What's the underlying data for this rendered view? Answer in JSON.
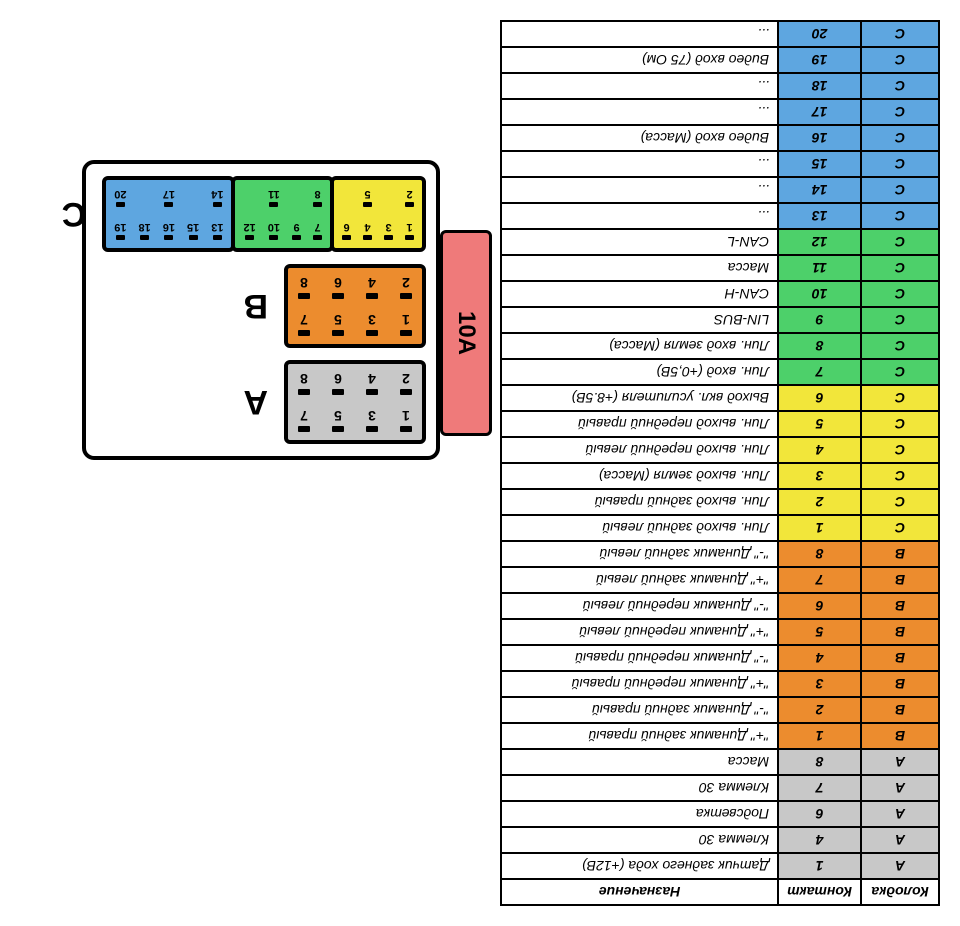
{
  "colors": {
    "gray": "#c8c8c8",
    "orange": "#ec8c2e",
    "yellow": "#f2e63a",
    "green": "#4dd06a",
    "blue": "#5ea6e0",
    "fuse": "#ef7a7a",
    "border": "#000000",
    "bg": "#ffffff"
  },
  "fuse_label": "10A",
  "connectors": {
    "A": {
      "color": "gray",
      "pins": [
        [
          1,
          2
        ],
        [
          3,
          4
        ],
        [
          5,
          6
        ],
        [
          7,
          8
        ]
      ]
    },
    "B": {
      "color": "orange",
      "pins": [
        [
          1,
          2
        ],
        [
          3,
          4
        ],
        [
          5,
          6
        ],
        [
          7,
          8
        ]
      ]
    },
    "C": {
      "segments": [
        {
          "color": "yellow",
          "pins": [
            [
              1,
              2
            ],
            [
              3,
              null
            ],
            [
              4,
              5
            ],
            [
              6,
              null
            ]
          ]
        },
        {
          "color": "green",
          "pins": [
            [
              7,
              8
            ],
            [
              9,
              null
            ],
            [
              10,
              11
            ],
            [
              12,
              null
            ]
          ]
        },
        {
          "color": "blue",
          "pins": [
            [
              13,
              14
            ],
            [
              15,
              null
            ],
            [
              16,
              17
            ],
            [
              18,
              null
            ],
            [
              19,
              20
            ]
          ]
        }
      ]
    }
  },
  "table": {
    "headers": {
      "k": "Колодка",
      "n": "Контакт",
      "d": "Назначение"
    },
    "rows": [
      {
        "k": "A",
        "n": "1",
        "d": "Датчик заднего хода (+12В)",
        "c": "gray"
      },
      {
        "k": "A",
        "n": "4",
        "d": "Клемма 30",
        "c": "gray"
      },
      {
        "k": "A",
        "n": "6",
        "d": "Подсветка",
        "c": "gray"
      },
      {
        "k": "A",
        "n": "7",
        "d": "Клемма 30",
        "c": "gray"
      },
      {
        "k": "A",
        "n": "8",
        "d": "Масса",
        "c": "gray"
      },
      {
        "k": "B",
        "n": "1",
        "d": "\"+\" Динамик задний правый",
        "c": "orange"
      },
      {
        "k": "B",
        "n": "2",
        "d": "\"-\" Динамик задний правый",
        "c": "orange"
      },
      {
        "k": "B",
        "n": "3",
        "d": "\"+\" Динамик передний правый",
        "c": "orange"
      },
      {
        "k": "B",
        "n": "4",
        "d": "\"-\" Динамик передний правый",
        "c": "orange"
      },
      {
        "k": "B",
        "n": "5",
        "d": "\"+\" Динамик передний левый",
        "c": "orange"
      },
      {
        "k": "B",
        "n": "6",
        "d": "\"-\" Динамик передний левый",
        "c": "orange"
      },
      {
        "k": "B",
        "n": "7",
        "d": "\"+\" Динамик задний левый",
        "c": "orange"
      },
      {
        "k": "B",
        "n": "8",
        "d": "\"-\" Динамик задний левый",
        "c": "orange"
      },
      {
        "k": "C",
        "n": "1",
        "d": "Лин. выход задний левый",
        "c": "yellow"
      },
      {
        "k": "C",
        "n": "2",
        "d": "Лин. выход задний правый",
        "c": "yellow"
      },
      {
        "k": "C",
        "n": "3",
        "d": "Лин. выход земля (Масса)",
        "c": "yellow"
      },
      {
        "k": "C",
        "n": "4",
        "d": "Лин. выход передний левый",
        "c": "yellow"
      },
      {
        "k": "C",
        "n": "5",
        "d": "Лин. выход передний правый",
        "c": "yellow"
      },
      {
        "k": "C",
        "n": "6",
        "d": "Выход вкл. усилителя (+8.5В)",
        "c": "yellow"
      },
      {
        "k": "C",
        "n": "7",
        "d": "Лин. вход (+0,5В)",
        "c": "green"
      },
      {
        "k": "C",
        "n": "8",
        "d": "Лин. вход земля (Масса)",
        "c": "green"
      },
      {
        "k": "C",
        "n": "9",
        "d": "LIN-BUS",
        "c": "green"
      },
      {
        "k": "C",
        "n": "10",
        "d": "CAN-H",
        "c": "green"
      },
      {
        "k": "C",
        "n": "11",
        "d": "Масса",
        "c": "green"
      },
      {
        "k": "C",
        "n": "12",
        "d": "CAN-L",
        "c": "green"
      },
      {
        "k": "C",
        "n": "13",
        "d": "...",
        "c": "blue"
      },
      {
        "k": "C",
        "n": "14",
        "d": "...",
        "c": "blue"
      },
      {
        "k": "C",
        "n": "15",
        "d": "...",
        "c": "blue"
      },
      {
        "k": "C",
        "n": "16",
        "d": "Видео вход (Масса)",
        "c": "blue"
      },
      {
        "k": "C",
        "n": "17",
        "d": "...",
        "c": "blue"
      },
      {
        "k": "C",
        "n": "18",
        "d": "...",
        "c": "blue"
      },
      {
        "k": "C",
        "n": "19",
        "d": "Видео вход (75 Ом)",
        "c": "blue"
      },
      {
        "k": "C",
        "n": "20",
        "d": "...",
        "c": "blue"
      }
    ]
  }
}
